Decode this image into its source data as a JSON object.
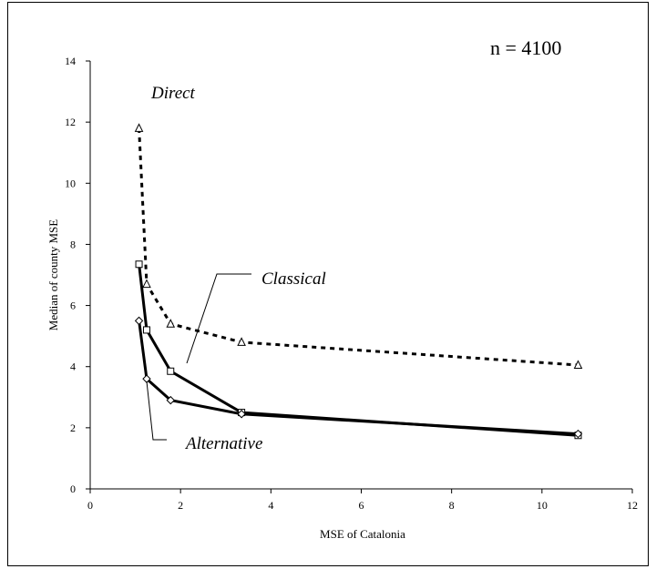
{
  "chart_data": {
    "type": "line",
    "title": "",
    "annotation": "n = 4100",
    "xlabel": "MSE of Catalonia",
    "ylabel": "Median of county MSE",
    "xlim": [
      0,
      12
    ],
    "ylim": [
      0,
      14
    ],
    "xticks": [
      "0",
      "2",
      "4",
      "6",
      "8",
      "10",
      "12"
    ],
    "yticks": [
      "0",
      "2",
      "4",
      "6",
      "8",
      "10",
      "12",
      "14"
    ],
    "grid": false,
    "series": [
      {
        "name": "Direct",
        "style": "dashed",
        "marker": "triangle",
        "x": [
          1.08,
          1.25,
          1.78,
          3.35,
          10.8
        ],
        "y": [
          11.8,
          6.7,
          5.4,
          4.8,
          4.05
        ]
      },
      {
        "name": "Classical",
        "style": "solid",
        "marker": "square",
        "x": [
          1.08,
          1.25,
          1.78,
          3.35,
          10.8
        ],
        "y": [
          7.35,
          5.2,
          3.85,
          2.5,
          1.75
        ]
      },
      {
        "name": "Alternative",
        "style": "solid",
        "marker": "diamond",
        "x": [
          1.08,
          1.25,
          1.78,
          3.35,
          10.8
        ],
        "y": [
          5.5,
          3.6,
          2.9,
          2.45,
          1.8
        ]
      }
    ]
  }
}
